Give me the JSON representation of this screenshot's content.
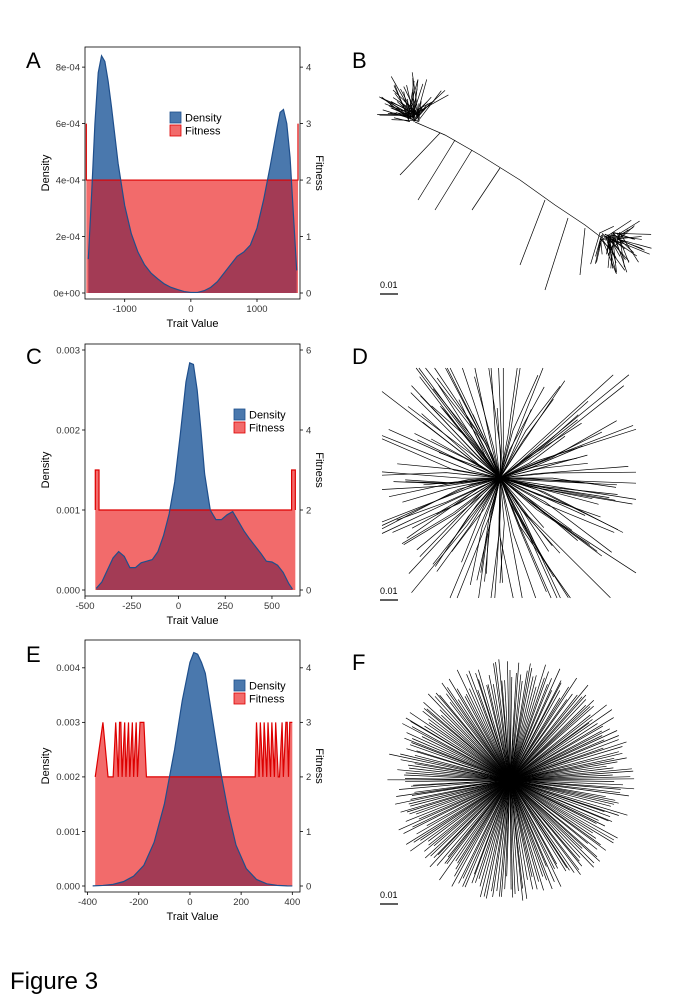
{
  "figure_label": "Figure 3",
  "colors": {
    "density_fill": "#4a78ad",
    "density_line": "#1f4f8c",
    "fitness_fill": "#f26b6b",
    "fitness_line": "#dd0000",
    "overlap": "#a33b55",
    "tree": "#000000"
  },
  "chart_data": [
    {
      "panel": "A",
      "type": "area",
      "xlabel": "Trait Value",
      "ylabel_left": "Density",
      "ylabel_right": "Fitness",
      "xlim": [
        -1600,
        1650
      ],
      "ylim_left": [
        0,
        0.00085
      ],
      "ylim_right": [
        0,
        4.25
      ],
      "x_ticks": [
        -1000,
        0,
        1000
      ],
      "x_tick_labels": [
        "-1000",
        "0",
        "1000"
      ],
      "y_left_ticks": [
        0,
        0.0002,
        0.0004,
        0.0006,
        0.0008
      ],
      "y_left_tick_labels": [
        "0e+00",
        "2e-04",
        "4e-04",
        "6e-04",
        "8e-04"
      ],
      "y_right_ticks": [
        0,
        1,
        2,
        3,
        4
      ],
      "y_right_tick_labels": [
        "0",
        "1",
        "2",
        "3",
        "4"
      ],
      "legend": [
        "Density",
        "Fitness"
      ],
      "legend_position": "top-center",
      "series": [
        {
          "name": "Density",
          "axis": "left",
          "x": [
            -1550,
            -1500,
            -1450,
            -1400,
            -1350,
            -1300,
            -1250,
            -1200,
            -1100,
            -1000,
            -900,
            -800,
            -700,
            -600,
            -500,
            -400,
            -300,
            -200,
            -100,
            0,
            100,
            200,
            300,
            400,
            500,
            600,
            700,
            800,
            900,
            1000,
            1100,
            1200,
            1300,
            1350,
            1400,
            1450,
            1500,
            1550,
            1600
          ],
          "y": [
            0.00012,
            0.00035,
            0.0006,
            0.00078,
            0.00084,
            0.00082,
            0.00075,
            0.00066,
            0.00046,
            0.00031,
            0.00021,
            0.000145,
            0.0001,
            7e-05,
            5e-05,
            3.2e-05,
            2e-05,
            1.2e-05,
            5e-06,
            2e-06,
            2e-06,
            8e-06,
            2e-05,
            4e-05,
            7e-05,
            0.0001,
            0.00013,
            0.000145,
            0.00017,
            0.00023,
            0.00033,
            0.00045,
            0.00058,
            0.00064,
            0.00065,
            0.0006,
            0.00048,
            0.00028,
            8e-05
          ]
        },
        {
          "name": "Fitness",
          "axis": "right",
          "x": [
            -1580,
            -1580,
            -1545,
            -1545,
            1585,
            1585,
            1620,
            1620
          ],
          "y": [
            3,
            2,
            2,
            2,
            2,
            2,
            2,
            3
          ]
        }
      ]
    },
    {
      "panel": "C",
      "type": "area",
      "xlabel": "Trait Value",
      "ylabel_left": "Density",
      "ylabel_right": "Fitness",
      "xlim": [
        -500,
        650
      ],
      "ylim_left": [
        0,
        0.003
      ],
      "ylim_right": [
        0,
        6
      ],
      "x_ticks": [
        -500,
        -250,
        0,
        250,
        500
      ],
      "x_tick_labels": [
        "-500",
        "-250",
        "0",
        "250",
        "500"
      ],
      "y_left_ticks": [
        0,
        0.001,
        0.002,
        0.003
      ],
      "y_left_tick_labels": [
        "0.000",
        "0.001",
        "0.002",
        "0.003"
      ],
      "y_right_ticks": [
        0,
        2,
        4,
        6
      ],
      "y_right_tick_labels": [
        "0",
        "2",
        "4",
        "6"
      ],
      "legend": [
        "Density",
        "Fitness"
      ],
      "legend_position": "top-right",
      "series": [
        {
          "name": "Density",
          "axis": "left",
          "x": [
            -440,
            -410,
            -380,
            -350,
            -320,
            -290,
            -260,
            -230,
            -200,
            -170,
            -140,
            -110,
            -80,
            -50,
            -20,
            10,
            40,
            60,
            80,
            100,
            120,
            140,
            170,
            200,
            230,
            260,
            290,
            320,
            350,
            380,
            410,
            440,
            470,
            500,
            530,
            560,
            590,
            610
          ],
          "y": [
            2e-05,
            0.0001,
            0.00025,
            0.0004,
            0.00048,
            0.00042,
            0.00028,
            0.00028,
            0.00034,
            0.00036,
            0.00038,
            0.00048,
            0.00068,
            0.00095,
            0.00135,
            0.00195,
            0.0026,
            0.00284,
            0.00282,
            0.0025,
            0.002,
            0.00145,
            0.001,
            0.00088,
            0.00088,
            0.00094,
            0.00098,
            0.00086,
            0.00074,
            0.00064,
            0.00055,
            0.00046,
            0.00036,
            0.00035,
            0.00031,
            0.00022,
            8e-05,
            1e-05
          ]
        },
        {
          "name": "Fitness",
          "axis": "right",
          "x": [
            -445,
            -445,
            -425,
            -425,
            -405,
            -405,
            605,
            605,
            625,
            625
          ],
          "y": [
            2,
            3,
            3,
            2,
            2,
            2,
            2,
            3,
            3,
            2
          ]
        }
      ]
    },
    {
      "panel": "E",
      "type": "area",
      "xlabel": "Trait Value",
      "ylabel_left": "Density",
      "ylabel_right": "Fitness",
      "xlim": [
        -410,
        430
      ],
      "ylim_left": [
        0,
        0.0044
      ],
      "ylim_right": [
        0,
        4.4
      ],
      "x_ticks": [
        -400,
        -200,
        0,
        200,
        400
      ],
      "x_tick_labels": [
        "-400",
        "-200",
        "0",
        "200",
        "400"
      ],
      "y_left_ticks": [
        0,
        0.001,
        0.002,
        0.003,
        0.004
      ],
      "y_left_tick_labels": [
        "0.000",
        "0.001",
        "0.002",
        "0.003",
        "0.004"
      ],
      "y_right_ticks": [
        0,
        1,
        2,
        3,
        4
      ],
      "y_right_tick_labels": [
        "0",
        "1",
        "2",
        "3",
        "4"
      ],
      "legend": [
        "Density",
        "Fitness"
      ],
      "legend_position": "top-right",
      "series": [
        {
          "name": "Density",
          "axis": "left",
          "x": [
            -380,
            -340,
            -300,
            -260,
            -220,
            -180,
            -140,
            -100,
            -60,
            -30,
            0,
            15,
            30,
            45,
            60,
            90,
            120,
            150,
            180,
            220,
            260,
            300,
            340,
            380,
            400
          ],
          "y": [
            3e-06,
            1e-05,
            3e-05,
            8e-05,
            0.00018,
            0.00038,
            0.0008,
            0.0015,
            0.0025,
            0.0034,
            0.0041,
            0.00428,
            0.00425,
            0.0041,
            0.0039,
            0.003,
            0.0021,
            0.00135,
            0.00075,
            0.00032,
            0.00012,
            4e-05,
            1.2e-05,
            3e-06,
            1e-06
          ]
        },
        {
          "name": "Fitness",
          "axis": "right",
          "x": [
            -370,
            -340,
            -320,
            -300,
            -290,
            -280,
            -275,
            -270,
            -265,
            -255,
            -250,
            -240,
            -235,
            -225,
            -220,
            -210,
            -205,
            -195,
            -190,
            -185,
            -180,
            -170,
            255,
            260,
            270,
            275,
            285,
            290,
            300,
            305,
            315,
            320,
            330,
            335,
            345,
            350,
            360,
            365,
            375,
            380,
            385,
            390,
            400
          ],
          "y": [
            2,
            3,
            2,
            2,
            3,
            2,
            3,
            3,
            2,
            3,
            2,
            3,
            2,
            3,
            2,
            3,
            2,
            3,
            3,
            3,
            3,
            2,
            2,
            3,
            2,
            3,
            2,
            3,
            2,
            3,
            2,
            3,
            2,
            3,
            2,
            2,
            3,
            2,
            3,
            3,
            2,
            3,
            3
          ]
        }
      ]
    }
  ],
  "trees": [
    {
      "panel": "B",
      "type": "phylogenetic-tree",
      "scale_label": "0.01"
    },
    {
      "panel": "D",
      "type": "phylogenetic-tree",
      "scale_label": "0.01"
    },
    {
      "panel": "F",
      "type": "phylogenetic-tree",
      "scale_label": "0.01"
    }
  ]
}
